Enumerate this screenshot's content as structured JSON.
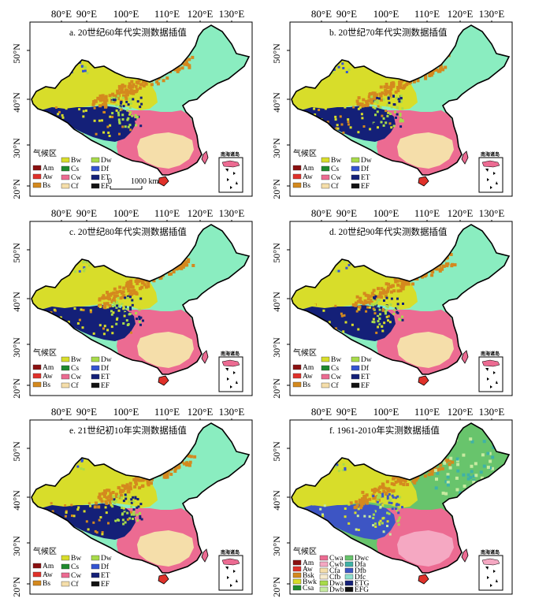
{
  "longitude_labels": [
    "80°E",
    "90°E",
    "100°E",
    "110°E",
    "120°E",
    "130°E"
  ],
  "latitude_labels": [
    "50°N",
    "40°N",
    "30°N",
    "20°N"
  ],
  "legend_title": "气候区",
  "inset_label": "南海诸岛",
  "scale_bar": {
    "zero": "0",
    "distance": "1000 km"
  },
  "legend_basic": [
    "Am",
    "Aw",
    "Bs",
    "Bw",
    "Cs",
    "Cw",
    "Cf",
    "Dw",
    "Df",
    "ET",
    "EF"
  ],
  "legend_detailed": [
    "Am",
    "Aw",
    "Bsk",
    "Bwk",
    "Csa",
    "Cwa",
    "Cwb",
    "Cfa",
    "Cfb",
    "Dwa",
    "Dwb",
    "Dwc",
    "Dfa",
    "Dfb",
    "Dfc",
    "ETG",
    "EFG"
  ],
  "colors": {
    "Am": "#8b1010",
    "Aw": "#e0312a",
    "Bs": "#d4891e",
    "Bsk": "#d4891e",
    "Bw": "#d8dd2a",
    "Bwk": "#d8dd2a",
    "Cs": "#1f8a2e",
    "Csa": "#1f8a2e",
    "Cw": "#ec6b92",
    "Cwa": "#ec6b92",
    "Cwb": "#f5a8c2",
    "Cf": "#f5deaa",
    "Cfa": "#f5deaa",
    "Cfb": "#f8ecce",
    "Dw": "#a8db4a",
    "Dwa": "#a8db4a",
    "Dwb": "#c6eaa0",
    "Dwc": "#68c46c",
    "Df": "#3454d1",
    "Dfa": "#3fb2a6",
    "Dfb": "#3d55c4",
    "Dfc": "#8fe0ce",
    "ET": "#142078",
    "ETG": "#142078",
    "EF": "#111111",
    "EFG": "#111111",
    "ne": "#8aedc0"
  },
  "panels": [
    {
      "id": "a",
      "title": "a. 20世纪60年代实测数据插值",
      "plateau": "ET",
      "west": "Bs",
      "north_band": "Bs",
      "mosaic": "Bs",
      "southeast": "Cf",
      "detailed": false,
      "scale": true,
      "ne_zone": "ne"
    },
    {
      "id": "b",
      "title": "b. 20世纪70年代实测数据插值",
      "plateau": "ET",
      "west": "Bs",
      "north_band": "Bs",
      "mosaic": "Bs",
      "southeast": "Cf",
      "detailed": false,
      "scale": false,
      "ne_zone": "ne"
    },
    {
      "id": "c",
      "title": "c. 20世纪80年代实测数据插值",
      "plateau": "ET",
      "west": "Bs",
      "north_band": "Bs",
      "mosaic": "Bs",
      "southeast": "Cf",
      "detailed": false,
      "scale": false,
      "ne_zone": "ne"
    },
    {
      "id": "d",
      "title": "d. 20世纪90年代实测数据插值",
      "plateau": "ET",
      "west": "Bs",
      "north_band": "Bs",
      "mosaic": "Bs",
      "southeast": "Cf",
      "detailed": false,
      "scale": false,
      "ne_zone": "ne"
    },
    {
      "id": "e",
      "title": "e. 21世纪初10年实测数据插值",
      "plateau": "ET",
      "west": "Bs",
      "north_band": "Bs",
      "mosaic": "Bs",
      "southeast": "Cf",
      "detailed": false,
      "scale": false,
      "ne_zone": "ne"
    },
    {
      "id": "f",
      "title": "f. 1961-2010年实测数据插值",
      "plateau": "Dfb",
      "west": "Bsk",
      "north_band": "Bsk",
      "mosaic": "Dwb",
      "southeast": "Cwb",
      "detailed": true,
      "scale": false,
      "ne_zone": "Dwc"
    }
  ]
}
